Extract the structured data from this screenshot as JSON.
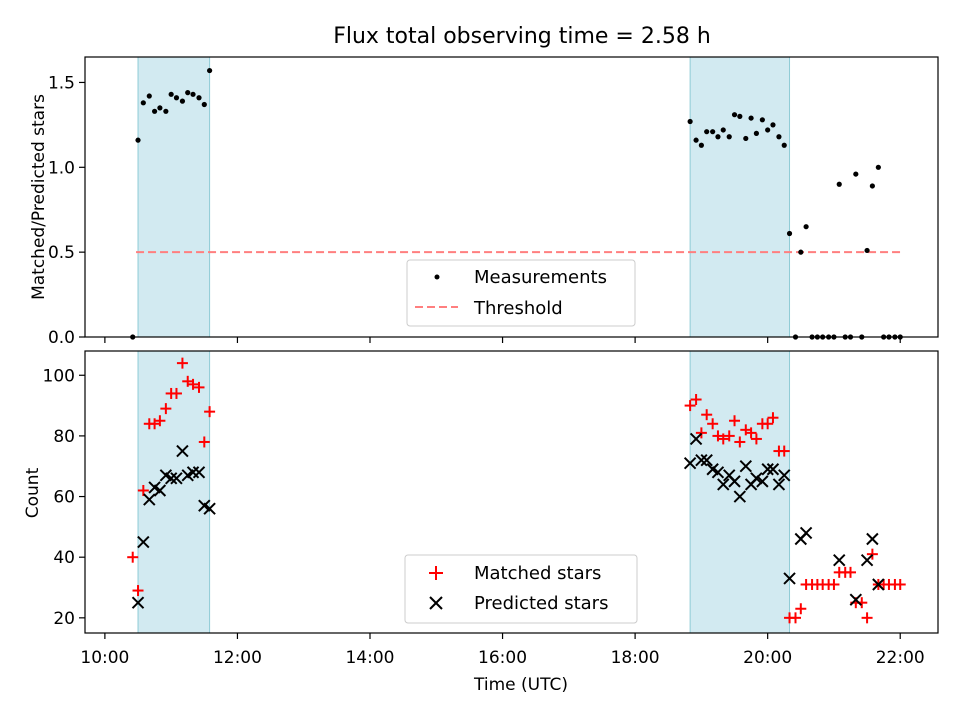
{
  "title": "Flux total observing time = 2.58 h",
  "colors": {
    "measurement": "#000000",
    "threshold": "#ff7f7f",
    "matched": "#ff0000",
    "predicted": "#000000",
    "span_fill": "#add8e6"
  },
  "chart_data": [
    {
      "type": "scatter",
      "ylabel": "Matched/Predicted stars",
      "ylim": [
        0,
        1.65
      ],
      "yticks": [
        0.0,
        0.5,
        1.0,
        1.5
      ],
      "ytick_labels": [
        "0.0",
        "0.5",
        "1.0",
        "1.5"
      ],
      "xlim": [
        9.7,
        22.57
      ],
      "grid": false,
      "legend_position": "lower-center",
      "legend": [
        {
          "label": "Measurements",
          "marker": "dot"
        },
        {
          "label": "Threshold",
          "marker": "dashed-line"
        }
      ],
      "spans": [
        [
          10.5,
          11.58
        ],
        [
          18.83,
          20.33
        ]
      ],
      "threshold": {
        "value": 0.5,
        "x_range": [
          10.47,
          22.0
        ]
      },
      "series": [
        {
          "name": "Measurements",
          "points": [
            [
              10.42,
              0.0
            ],
            [
              10.5,
              1.16
            ],
            [
              10.58,
              1.38
            ],
            [
              10.67,
              1.42
            ],
            [
              10.75,
              1.33
            ],
            [
              10.83,
              1.35
            ],
            [
              10.92,
              1.33
            ],
            [
              11.0,
              1.43
            ],
            [
              11.08,
              1.41
            ],
            [
              11.17,
              1.39
            ],
            [
              11.25,
              1.44
            ],
            [
              11.33,
              1.43
            ],
            [
              11.42,
              1.41
            ],
            [
              11.5,
              1.37
            ],
            [
              11.58,
              1.57
            ],
            [
              18.83,
              1.27
            ],
            [
              18.92,
              1.16
            ],
            [
              19.0,
              1.13
            ],
            [
              19.08,
              1.21
            ],
            [
              19.17,
              1.21
            ],
            [
              19.25,
              1.18
            ],
            [
              19.33,
              1.22
            ],
            [
              19.42,
              1.18
            ],
            [
              19.5,
              1.31
            ],
            [
              19.58,
              1.3
            ],
            [
              19.67,
              1.17
            ],
            [
              19.75,
              1.29
            ],
            [
              19.83,
              1.2
            ],
            [
              19.92,
              1.28
            ],
            [
              20.0,
              1.22
            ],
            [
              20.08,
              1.25
            ],
            [
              20.17,
              1.18
            ],
            [
              20.25,
              1.13
            ],
            [
              20.33,
              0.61
            ],
            [
              20.42,
              0.0
            ],
            [
              20.5,
              0.5
            ],
            [
              20.58,
              0.65
            ],
            [
              20.67,
              0.0
            ],
            [
              20.75,
              0.0
            ],
            [
              20.83,
              0.0
            ],
            [
              20.92,
              0.0
            ],
            [
              21.0,
              0.0
            ],
            [
              21.08,
              0.9
            ],
            [
              21.17,
              0.0
            ],
            [
              21.25,
              0.0
            ],
            [
              21.33,
              0.96
            ],
            [
              21.42,
              0.0
            ],
            [
              21.5,
              0.51
            ],
            [
              21.58,
              0.89
            ],
            [
              21.67,
              1.0
            ],
            [
              21.75,
              0.0
            ],
            [
              21.83,
              0.0
            ],
            [
              21.92,
              0.0
            ],
            [
              22.0,
              0.0
            ]
          ]
        }
      ]
    },
    {
      "type": "scatter",
      "ylabel": "Count",
      "xlabel": "Time (UTC)",
      "ylim": [
        15,
        108
      ],
      "yticks": [
        20,
        40,
        60,
        80,
        100
      ],
      "ytick_labels": [
        "20",
        "40",
        "60",
        "80",
        "100"
      ],
      "xlim": [
        9.7,
        22.57
      ],
      "xticks": [
        10,
        12,
        14,
        16,
        18,
        20,
        22
      ],
      "xtick_labels": [
        "10:00",
        "12:00",
        "14:00",
        "16:00",
        "18:00",
        "20:00",
        "22:00"
      ],
      "grid": false,
      "legend_position": "lower-center",
      "spans": [
        [
          10.5,
          11.58
        ],
        [
          18.83,
          20.33
        ]
      ],
      "series": [
        {
          "name": "Matched stars",
          "marker": "plus",
          "points": [
            [
              10.42,
              40
            ],
            [
              10.5,
              29
            ],
            [
              10.58,
              62
            ],
            [
              10.67,
              84
            ],
            [
              10.75,
              84
            ],
            [
              10.83,
              85
            ],
            [
              10.92,
              89
            ],
            [
              11.0,
              94
            ],
            [
              11.08,
              94
            ],
            [
              11.17,
              104
            ],
            [
              11.25,
              98
            ],
            [
              11.33,
              97
            ],
            [
              11.42,
              96
            ],
            [
              11.5,
              78
            ],
            [
              11.58,
              88
            ],
            [
              18.83,
              90
            ],
            [
              18.92,
              92
            ],
            [
              19.0,
              81
            ],
            [
              19.08,
              87
            ],
            [
              19.17,
              84
            ],
            [
              19.25,
              80
            ],
            [
              19.33,
              79
            ],
            [
              19.42,
              80
            ],
            [
              19.5,
              85
            ],
            [
              19.58,
              78
            ],
            [
              19.67,
              82
            ],
            [
              19.75,
              81
            ],
            [
              19.83,
              79
            ],
            [
              19.92,
              84
            ],
            [
              20.0,
              84
            ],
            [
              20.08,
              86
            ],
            [
              20.17,
              75
            ],
            [
              20.25,
              75
            ],
            [
              20.33,
              20
            ],
            [
              20.42,
              20
            ],
            [
              20.5,
              23
            ],
            [
              20.58,
              31
            ],
            [
              20.67,
              31
            ],
            [
              20.75,
              31
            ],
            [
              20.83,
              31
            ],
            [
              20.92,
              31
            ],
            [
              21.0,
              31
            ],
            [
              21.08,
              35
            ],
            [
              21.17,
              35
            ],
            [
              21.25,
              35
            ],
            [
              21.33,
              25
            ],
            [
              21.42,
              25
            ],
            [
              21.5,
              20
            ],
            [
              21.58,
              41
            ],
            [
              21.67,
              31
            ],
            [
              21.75,
              31
            ],
            [
              21.83,
              31
            ],
            [
              21.92,
              31
            ],
            [
              22.0,
              31
            ]
          ]
        },
        {
          "name": "Predicted stars",
          "marker": "x",
          "points": [
            [
              10.5,
              25
            ],
            [
              10.58,
              45
            ],
            [
              10.67,
              59
            ],
            [
              10.75,
              63
            ],
            [
              10.83,
              62
            ],
            [
              10.92,
              67
            ],
            [
              11.0,
              66
            ],
            [
              11.08,
              66
            ],
            [
              11.17,
              75
            ],
            [
              11.25,
              67
            ],
            [
              11.33,
              68
            ],
            [
              11.42,
              68
            ],
            [
              11.5,
              57
            ],
            [
              11.58,
              56
            ],
            [
              18.83,
              71
            ],
            [
              18.92,
              79
            ],
            [
              19.0,
              72
            ],
            [
              19.08,
              72
            ],
            [
              19.17,
              69
            ],
            [
              19.25,
              68
            ],
            [
              19.33,
              64
            ],
            [
              19.42,
              67
            ],
            [
              19.5,
              65
            ],
            [
              19.58,
              60
            ],
            [
              19.67,
              70
            ],
            [
              19.75,
              64
            ],
            [
              19.83,
              66
            ],
            [
              19.92,
              65
            ],
            [
              20.0,
              69
            ],
            [
              20.08,
              69
            ],
            [
              20.17,
              64
            ],
            [
              20.25,
              67
            ],
            [
              20.33,
              33
            ],
            [
              20.5,
              46
            ],
            [
              20.58,
              48
            ],
            [
              21.08,
              39
            ],
            [
              21.33,
              26
            ],
            [
              21.5,
              39
            ],
            [
              21.58,
              46
            ],
            [
              21.67,
              31
            ]
          ]
        }
      ]
    }
  ]
}
